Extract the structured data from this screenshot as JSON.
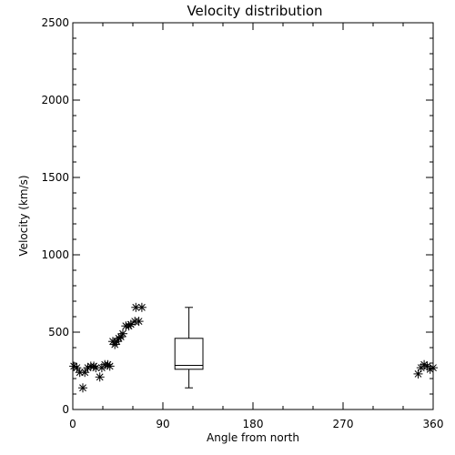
{
  "chart_data": {
    "type": "scatter",
    "title": "Velocity distribution",
    "xlabel": "Angle from north",
    "ylabel": "Velocity (km/s)",
    "xlim": [
      0,
      360
    ],
    "ylim": [
      0,
      2500
    ],
    "xticks": [
      0,
      90,
      180,
      270,
      360
    ],
    "yticks": [
      0,
      500,
      1000,
      1500,
      2000,
      2500
    ],
    "xtick_labels": [
      "0",
      "90",
      "180",
      "270",
      "360"
    ],
    "ytick_labels": [
      "0",
      "500",
      "1000",
      "1500",
      "2000",
      "2500"
    ],
    "grid": false,
    "marker": "asterisk",
    "points": [
      {
        "x": 1,
        "y": 280
      },
      {
        "x": 4,
        "y": 270
      },
      {
        "x": 7,
        "y": 240
      },
      {
        "x": 10,
        "y": 140
      },
      {
        "x": 12,
        "y": 240
      },
      {
        "x": 15,
        "y": 270
      },
      {
        "x": 18,
        "y": 280
      },
      {
        "x": 21,
        "y": 280
      },
      {
        "x": 23,
        "y": 270
      },
      {
        "x": 27,
        "y": 210
      },
      {
        "x": 29,
        "y": 270
      },
      {
        "x": 32,
        "y": 290
      },
      {
        "x": 35,
        "y": 290
      },
      {
        "x": 37,
        "y": 280
      },
      {
        "x": 40,
        "y": 440
      },
      {
        "x": 42,
        "y": 420
      },
      {
        "x": 44,
        "y": 440
      },
      {
        "x": 46,
        "y": 460
      },
      {
        "x": 48,
        "y": 470
      },
      {
        "x": 50,
        "y": 490
      },
      {
        "x": 53,
        "y": 540
      },
      {
        "x": 56,
        "y": 540
      },
      {
        "x": 58,
        "y": 550
      },
      {
        "x": 62,
        "y": 570
      },
      {
        "x": 63,
        "y": 660
      },
      {
        "x": 66,
        "y": 570
      },
      {
        "x": 69,
        "y": 660
      },
      {
        "x": 345,
        "y": 230
      },
      {
        "x": 348,
        "y": 270
      },
      {
        "x": 351,
        "y": 290
      },
      {
        "x": 354,
        "y": 280
      },
      {
        "x": 357,
        "y": 260
      },
      {
        "x": 360,
        "y": 270
      }
    ],
    "boxplot": {
      "x_center": 116,
      "x_halfwidth": 14,
      "whisker_halfwidth": 4,
      "min": 140,
      "q1": 260,
      "median": 285,
      "q3": 460,
      "max": 660
    }
  }
}
